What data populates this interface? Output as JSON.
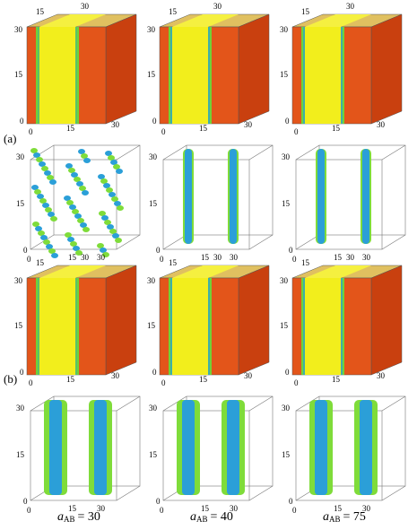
{
  "row_labels": [
    "(a)",
    "(b)"
  ],
  "cube_ticks": {
    "top": [
      15,
      30
    ],
    "left": [
      30,
      15,
      0
    ],
    "bottom": [
      0,
      15,
      30
    ]
  },
  "slab_ticks": {
    "left": [
      30,
      15,
      0
    ],
    "bottom": [
      0,
      15,
      30
    ]
  },
  "columns": [
    {
      "variable": "a",
      "subscript": "AB",
      "value": "= 30"
    },
    {
      "variable": "a",
      "subscript": "AB",
      "value": "= 40"
    },
    {
      "variable": "a",
      "subscript": "AB",
      "value": "= 75"
    }
  ]
}
